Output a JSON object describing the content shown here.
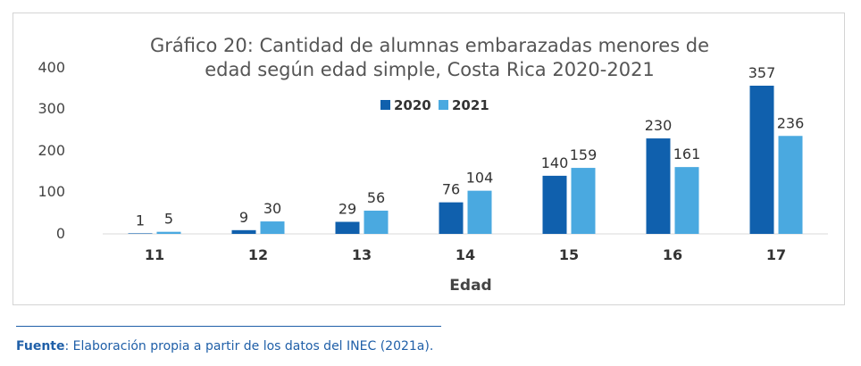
{
  "chart_data": {
    "type": "bar",
    "title_lines": [
      "Gráfico 20: Cantidad de alumnas embarazadas menores de",
      "edad según edad simple, Costa Rica 2020-2021"
    ],
    "categories": [
      "11",
      "12",
      "13",
      "14",
      "15",
      "16",
      "17"
    ],
    "series": [
      {
        "name": "2020",
        "color": "#1060ad",
        "values": [
          1,
          9,
          29,
          76,
          140,
          230,
          357
        ]
      },
      {
        "name": "2021",
        "color": "#4aa9e0",
        "values": [
          5,
          30,
          56,
          104,
          159,
          161,
          236
        ]
      }
    ],
    "xlabel": "Edad",
    "ylabel": "",
    "ylim": [
      0,
      400
    ],
    "yticks": [
      "0",
      "100",
      "200",
      "300",
      "400"
    ],
    "grid": false,
    "legend_position": "top-center"
  },
  "source": {
    "label": "Fuente",
    "text": ": Elaboración propia a partir de los datos del INEC (2021a)."
  }
}
